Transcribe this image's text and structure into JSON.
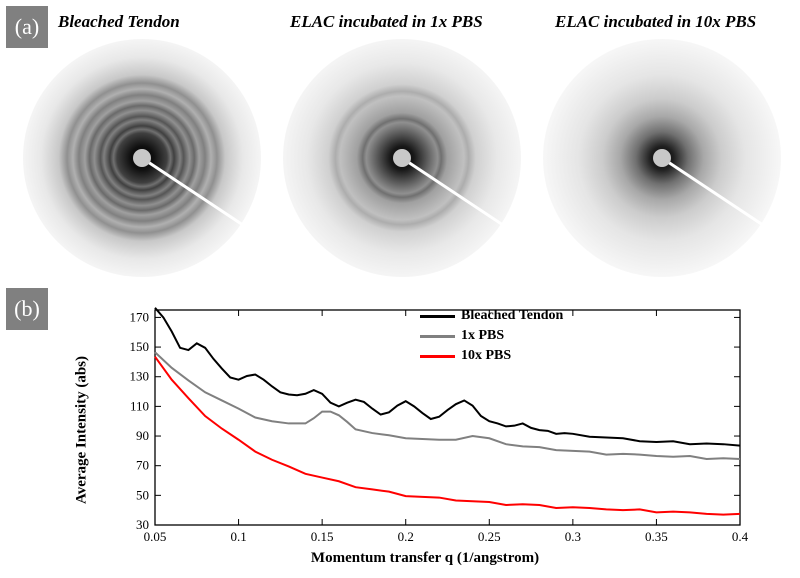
{
  "panel_a": {
    "label": "(a)",
    "titles": [
      "Bleached Tendon",
      "ELAC incubated in 1x PBS",
      "ELAC incubated in 10x PBS"
    ],
    "background_color": "#f5f5f5",
    "center_color": "#000000",
    "center_dot_color": "#d0d0d0",
    "beamstop_line_color": "#ffffff",
    "ring_counts": [
      5,
      2,
      0
    ],
    "ring_intensity": [
      0.35,
      0.18,
      0.05
    ]
  },
  "panel_b": {
    "label": "(b)",
    "xlabel": "Momentum transfer q (1/angstrom)",
    "ylabel": "Average Intensity (abs)",
    "xlim": [
      0.05,
      0.4
    ],
    "ylim": [
      30,
      175
    ],
    "xticks": [
      0.05,
      0.1,
      0.15,
      0.2,
      0.25,
      0.3,
      0.35,
      0.4
    ],
    "yticks": [
      30,
      50,
      70,
      90,
      110,
      130,
      150,
      170
    ],
    "series": [
      {
        "name": "Bleached Tendon",
        "color": "#000000",
        "width": 2,
        "data": [
          [
            0.05,
            177
          ],
          [
            0.055,
            170
          ],
          [
            0.06,
            160
          ],
          [
            0.065,
            150
          ],
          [
            0.07,
            148
          ],
          [
            0.075,
            152
          ],
          [
            0.08,
            150
          ],
          [
            0.085,
            142
          ],
          [
            0.09,
            135
          ],
          [
            0.095,
            130
          ],
          [
            0.1,
            128
          ],
          [
            0.105,
            130
          ],
          [
            0.11,
            132
          ],
          [
            0.115,
            128
          ],
          [
            0.12,
            123
          ],
          [
            0.125,
            120
          ],
          [
            0.13,
            118
          ],
          [
            0.135,
            117
          ],
          [
            0.14,
            119
          ],
          [
            0.145,
            121
          ],
          [
            0.15,
            118
          ],
          [
            0.155,
            113
          ],
          [
            0.16,
            110
          ],
          [
            0.165,
            112
          ],
          [
            0.17,
            115
          ],
          [
            0.175,
            113
          ],
          [
            0.18,
            108
          ],
          [
            0.185,
            105
          ],
          [
            0.19,
            106
          ],
          [
            0.195,
            110
          ],
          [
            0.2,
            114
          ],
          [
            0.205,
            110
          ],
          [
            0.21,
            105
          ],
          [
            0.215,
            102
          ],
          [
            0.22,
            103
          ],
          [
            0.225,
            107
          ],
          [
            0.23,
            112
          ],
          [
            0.235,
            114
          ],
          [
            0.24,
            110
          ],
          [
            0.245,
            104
          ],
          [
            0.25,
            100
          ],
          [
            0.255,
            98
          ],
          [
            0.26,
            97
          ],
          [
            0.265,
            97
          ],
          [
            0.27,
            98
          ],
          [
            0.275,
            96
          ],
          [
            0.28,
            94
          ],
          [
            0.285,
            93
          ],
          [
            0.29,
            92
          ],
          [
            0.295,
            92
          ],
          [
            0.3,
            91
          ],
          [
            0.31,
            90
          ],
          [
            0.32,
            89
          ],
          [
            0.33,
            88
          ],
          [
            0.34,
            87
          ],
          [
            0.35,
            86
          ],
          [
            0.36,
            86
          ],
          [
            0.37,
            85
          ],
          [
            0.38,
            85
          ],
          [
            0.39,
            84
          ],
          [
            0.4,
            84
          ]
        ]
      },
      {
        "name": "1x PBS",
        "color": "#808080",
        "width": 2,
        "data": [
          [
            0.05,
            147
          ],
          [
            0.06,
            136
          ],
          [
            0.07,
            127
          ],
          [
            0.08,
            120
          ],
          [
            0.09,
            114
          ],
          [
            0.1,
            108
          ],
          [
            0.11,
            103
          ],
          [
            0.12,
            100
          ],
          [
            0.13,
            98
          ],
          [
            0.14,
            99
          ],
          [
            0.145,
            102
          ],
          [
            0.15,
            106
          ],
          [
            0.155,
            107
          ],
          [
            0.16,
            104
          ],
          [
            0.165,
            99
          ],
          [
            0.17,
            95
          ],
          [
            0.18,
            92
          ],
          [
            0.19,
            90
          ],
          [
            0.2,
            89
          ],
          [
            0.21,
            88
          ],
          [
            0.22,
            87
          ],
          [
            0.23,
            88
          ],
          [
            0.24,
            90
          ],
          [
            0.25,
            88
          ],
          [
            0.26,
            85
          ],
          [
            0.27,
            83
          ],
          [
            0.28,
            82
          ],
          [
            0.29,
            81
          ],
          [
            0.3,
            80
          ],
          [
            0.31,
            79
          ],
          [
            0.32,
            78
          ],
          [
            0.33,
            78
          ],
          [
            0.34,
            77
          ],
          [
            0.35,
            77
          ],
          [
            0.36,
            76
          ],
          [
            0.37,
            76
          ],
          [
            0.38,
            75
          ],
          [
            0.39,
            75
          ],
          [
            0.4,
            74
          ]
        ]
      },
      {
        "name": "10x PBS",
        "color": "#ff0000",
        "width": 2,
        "data": [
          [
            0.05,
            144
          ],
          [
            0.06,
            128
          ],
          [
            0.07,
            115
          ],
          [
            0.08,
            104
          ],
          [
            0.09,
            95
          ],
          [
            0.1,
            87
          ],
          [
            0.11,
            80
          ],
          [
            0.12,
            74
          ],
          [
            0.13,
            69
          ],
          [
            0.14,
            65
          ],
          [
            0.15,
            62
          ],
          [
            0.16,
            59
          ],
          [
            0.17,
            56
          ],
          [
            0.18,
            54
          ],
          [
            0.19,
            52
          ],
          [
            0.2,
            50
          ],
          [
            0.21,
            49
          ],
          [
            0.22,
            48
          ],
          [
            0.23,
            47
          ],
          [
            0.24,
            46
          ],
          [
            0.25,
            45
          ],
          [
            0.26,
            44
          ],
          [
            0.27,
            44
          ],
          [
            0.28,
            43
          ],
          [
            0.29,
            42
          ],
          [
            0.3,
            42
          ],
          [
            0.31,
            41
          ],
          [
            0.32,
            41
          ],
          [
            0.33,
            40
          ],
          [
            0.34,
            40
          ],
          [
            0.35,
            39
          ],
          [
            0.36,
            39
          ],
          [
            0.37,
            38
          ],
          [
            0.38,
            38
          ],
          [
            0.39,
            37
          ],
          [
            0.4,
            37
          ]
        ]
      }
    ]
  }
}
